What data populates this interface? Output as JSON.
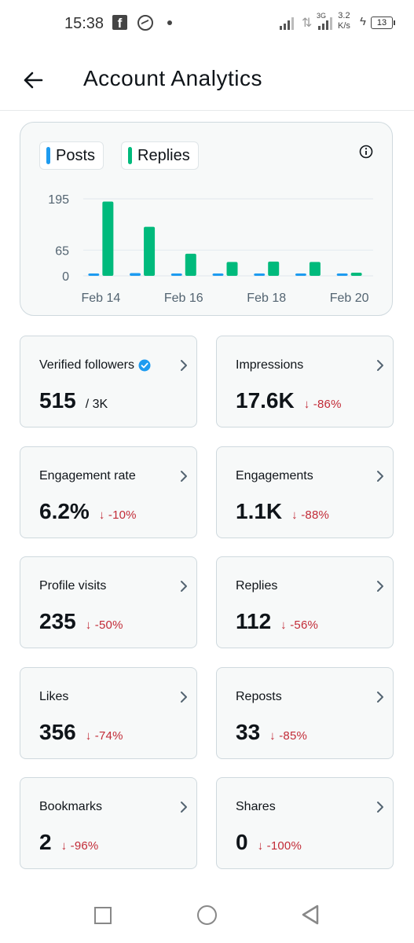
{
  "status_bar": {
    "time": "15:38",
    "network": "3G",
    "speed_value": "3.2",
    "speed_unit": "K/s",
    "battery": "13"
  },
  "header": {
    "title": "Account Analytics",
    "back_icon": "arrow-left-icon"
  },
  "chart": {
    "legend": [
      "Posts",
      "Replies"
    ],
    "colors": {
      "posts": "#1d9bf0",
      "replies": "#00ba7c",
      "grid": "#e6ecf0",
      "tick": "#536471"
    }
  },
  "chart_data": {
    "type": "bar",
    "categories": [
      "Feb 14",
      "Feb 15",
      "Feb 16",
      "Feb 17",
      "Feb 18",
      "Feb 19",
      "Feb 20"
    ],
    "x_tick_labels": [
      "Feb 14",
      "Feb 16",
      "Feb 18",
      "Feb 20"
    ],
    "y_ticks": [
      0,
      65,
      195
    ],
    "ylim": [
      0,
      195
    ],
    "series": [
      {
        "name": "Posts",
        "values": [
          5,
          7,
          6,
          4,
          5,
          2,
          1
        ]
      },
      {
        "name": "Replies",
        "values": [
          188,
          124,
          56,
          35,
          36,
          35,
          8
        ]
      }
    ],
    "title": "",
    "xlabel": "",
    "ylabel": "",
    "legend_position": "top-left",
    "grid": true
  },
  "metrics": [
    {
      "label": "Verified followers",
      "value": "515",
      "sub": "/ 3K",
      "change": "",
      "verified": true
    },
    {
      "label": "Impressions",
      "value": "17.6K",
      "sub": "",
      "change": "↓ -86%"
    },
    {
      "label": "Engagement rate",
      "value": "6.2%",
      "sub": "",
      "change": "↓ -10%"
    },
    {
      "label": "Engagements",
      "value": "1.1K",
      "sub": "",
      "change": "↓ -88%"
    },
    {
      "label": "Profile visits",
      "value": "235",
      "sub": "",
      "change": "↓ -50%"
    },
    {
      "label": "Replies",
      "value": "112",
      "sub": "",
      "change": "↓ -56%"
    },
    {
      "label": "Likes",
      "value": "356",
      "sub": "",
      "change": "↓ -74%"
    },
    {
      "label": "Reposts",
      "value": "33",
      "sub": "",
      "change": "↓ -85%"
    },
    {
      "label": "Bookmarks",
      "value": "2",
      "sub": "",
      "change": "↓ -96%"
    },
    {
      "label": "Shares",
      "value": "0",
      "sub": "",
      "change": "↓ -100%"
    }
  ],
  "navigation": {
    "recents_icon": "square-recents-icon",
    "home_icon": "circle-home-icon",
    "back_icon": "triangle-back-icon"
  }
}
